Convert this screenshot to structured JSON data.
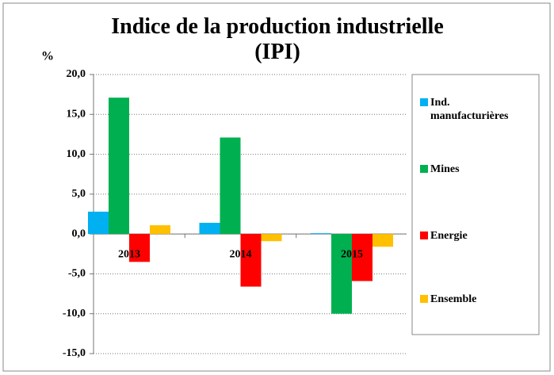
{
  "chart_data": {
    "type": "bar",
    "title": "Indice de la production industrielle (IPI)",
    "y_label": "%",
    "categories": [
      "2013",
      "2014",
      "2015"
    ],
    "series": [
      {
        "name": "Ind. manufacturières",
        "color": "#00b0f0",
        "values": [
          2.8,
          1.4,
          0.1
        ]
      },
      {
        "name": "Mines",
        "color": "#00b050",
        "values": [
          17.1,
          12.1,
          -10.0
        ]
      },
      {
        "name": "Energie",
        "color": "#ff0000",
        "values": [
          -3.5,
          -6.6,
          -5.9
        ]
      },
      {
        "name": "Ensemble",
        "color": "#ffc000",
        "values": [
          1.1,
          -0.9,
          -1.6
        ]
      }
    ],
    "ylim": [
      -15,
      20
    ],
    "yticks": [
      {
        "value": -15,
        "label": "-15,0"
      },
      {
        "value": -10,
        "label": "-10,0"
      },
      {
        "value": -5,
        "label": "-5,0"
      },
      {
        "value": 0,
        "label": "0,0"
      },
      {
        "value": 5,
        "label": "5,0"
      },
      {
        "value": 10,
        "label": "10,0"
      },
      {
        "value": 15,
        "label": "15,0"
      },
      {
        "value": 20,
        "label": "20,0"
      }
    ],
    "grid": true,
    "legend": "right"
  }
}
